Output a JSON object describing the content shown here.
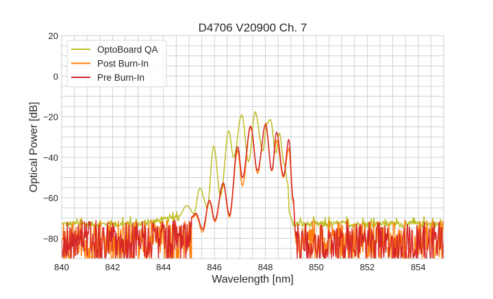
{
  "chart_data": {
    "type": "line",
    "title": "D4706 V20900 Ch. 7",
    "xlabel": "Wavelength [nm]",
    "ylabel": "Optical Power [dB]",
    "xlim": [
      840,
      855
    ],
    "ylim": [
      -90,
      20
    ],
    "xticks": [
      840,
      842,
      844,
      846,
      848,
      850,
      852,
      854
    ],
    "yticks": [
      20,
      0,
      -20,
      -40,
      -60,
      -80
    ],
    "xtick_labels": [
      "840",
      "842",
      "844",
      "846",
      "848",
      "850",
      "852",
      "854"
    ],
    "ytick_labels": [
      "20",
      "0",
      "−20",
      "−40",
      "−60",
      "−80"
    ],
    "grid": true,
    "minor_grid": true,
    "legend_placement": "top-left",
    "series": [
      {
        "name": "OptoBoard QA",
        "color": "#bcbd22",
        "noise_floor": {
          "before": [
            840,
            844.6
          ],
          "after": [
            849.1,
            855
          ],
          "level_db": -73
        },
        "x": [
          844.6,
          844.92,
          845.19,
          845.43,
          845.72,
          845.97,
          846.24,
          846.56,
          846.75,
          847.07,
          847.34,
          847.6,
          847.9,
          848.06,
          848.2,
          848.41,
          848.55,
          848.74,
          848.87,
          848.95,
          849.06
        ],
        "y": [
          -69,
          -63.7,
          -67.7,
          -55,
          -64.7,
          -34.3,
          -59.3,
          -26.9,
          -40,
          -19.1,
          -42,
          -17.8,
          -37,
          -23.2,
          -21.5,
          -37.7,
          -28.2,
          -43.4,
          -52.5,
          -68,
          -71.4
        ]
      },
      {
        "name": "Post Burn-In",
        "color": "#ff7f0e",
        "noise_floor": {
          "before": [
            840,
            845.1
          ],
          "after": [
            849.2,
            855
          ],
          "level_db": -82
        },
        "x": [
          845.1,
          845.27,
          845.54,
          845.8,
          846.02,
          846.34,
          846.59,
          846.91,
          847.1,
          847.42,
          847.69,
          848.01,
          848.25,
          848.44,
          848.71,
          848.92,
          849.09,
          849.19
        ],
        "y": [
          -70,
          -68.5,
          -77,
          -62,
          -72,
          -53.5,
          -69.5,
          -36.7,
          -54,
          -25,
          -48,
          -23.5,
          -47,
          -31.6,
          -50,
          -35.6,
          -62,
          -80
        ]
      },
      {
        "name": "Pre Burn-In",
        "color": "#d62728",
        "noise_floor": {
          "before": [
            840,
            845.1
          ],
          "after": [
            849.2,
            855
          ],
          "level_db": -82
        },
        "x": [
          845.1,
          845.27,
          845.54,
          845.8,
          846.02,
          846.34,
          846.59,
          846.91,
          847.1,
          847.42,
          847.69,
          848.01,
          848.25,
          848.44,
          848.71,
          848.92,
          849.09,
          849.19
        ],
        "y": [
          -69.4,
          -67.7,
          -75.5,
          -61,
          -71,
          -52.5,
          -68.4,
          -34.7,
          -50.2,
          -24.5,
          -46.5,
          -23.9,
          -46.5,
          -27.9,
          -49.2,
          -31.3,
          -60.3,
          -78
        ]
      }
    ]
  }
}
